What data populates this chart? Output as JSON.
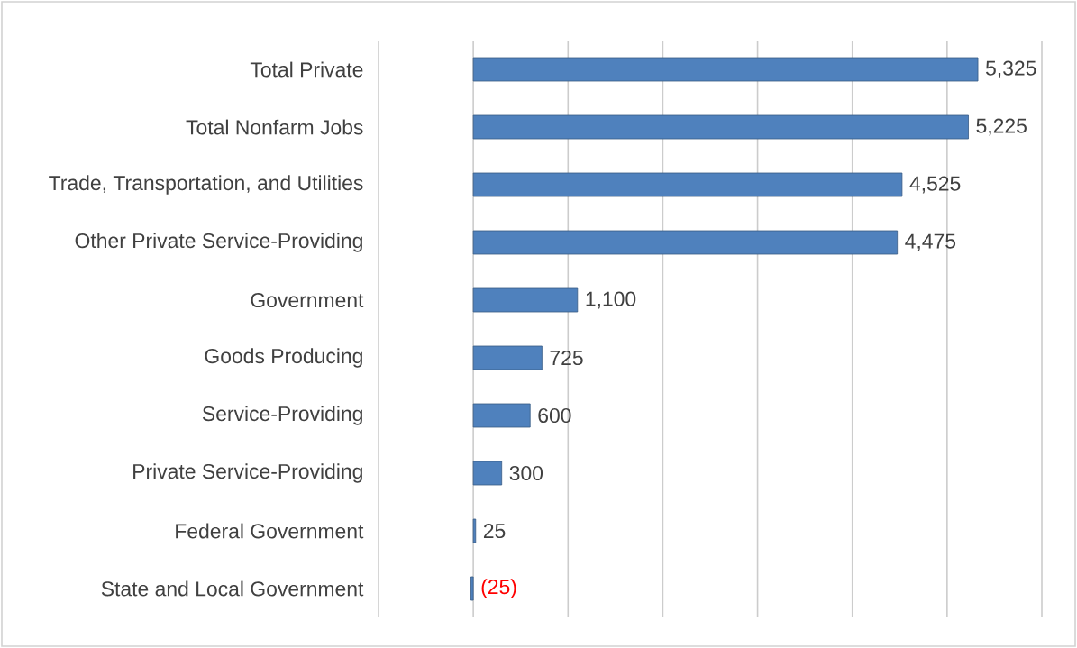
{
  "chart_data": {
    "type": "bar",
    "orientation": "horizontal",
    "categories": [
      "Total Private",
      "Total Nonfarm Jobs",
      "Trade, Transportation, and Utilities",
      "Other Private Service-Providing",
      "Government",
      "Goods Producing",
      "Service-Providing",
      "Private Service-Providing",
      "Federal Government",
      "State and Local Government"
    ],
    "values": [
      5325,
      5225,
      4525,
      4475,
      1100,
      725,
      600,
      300,
      25,
      -25
    ],
    "value_labels": [
      "5,325",
      "5,225",
      "4,525",
      "4,475",
      "1,100",
      "725",
      "600",
      "300",
      "25",
      "(25)"
    ],
    "color": "#4f81bd",
    "xlim": [
      -1000,
      6000
    ],
    "xticks": [
      {
        "value": -1000,
        "label": null
      },
      {
        "value": 0,
        "label": null
      },
      {
        "value": 1000,
        "label": null
      },
      {
        "value": 2000,
        "label": null
      },
      {
        "value": 3000,
        "label": null
      },
      {
        "value": 4000,
        "label": null
      },
      {
        "value": 5000,
        "label": null
      },
      {
        "value": 6000,
        "label": null
      }
    ],
    "grid": "x",
    "tick_labels": "y"
  }
}
